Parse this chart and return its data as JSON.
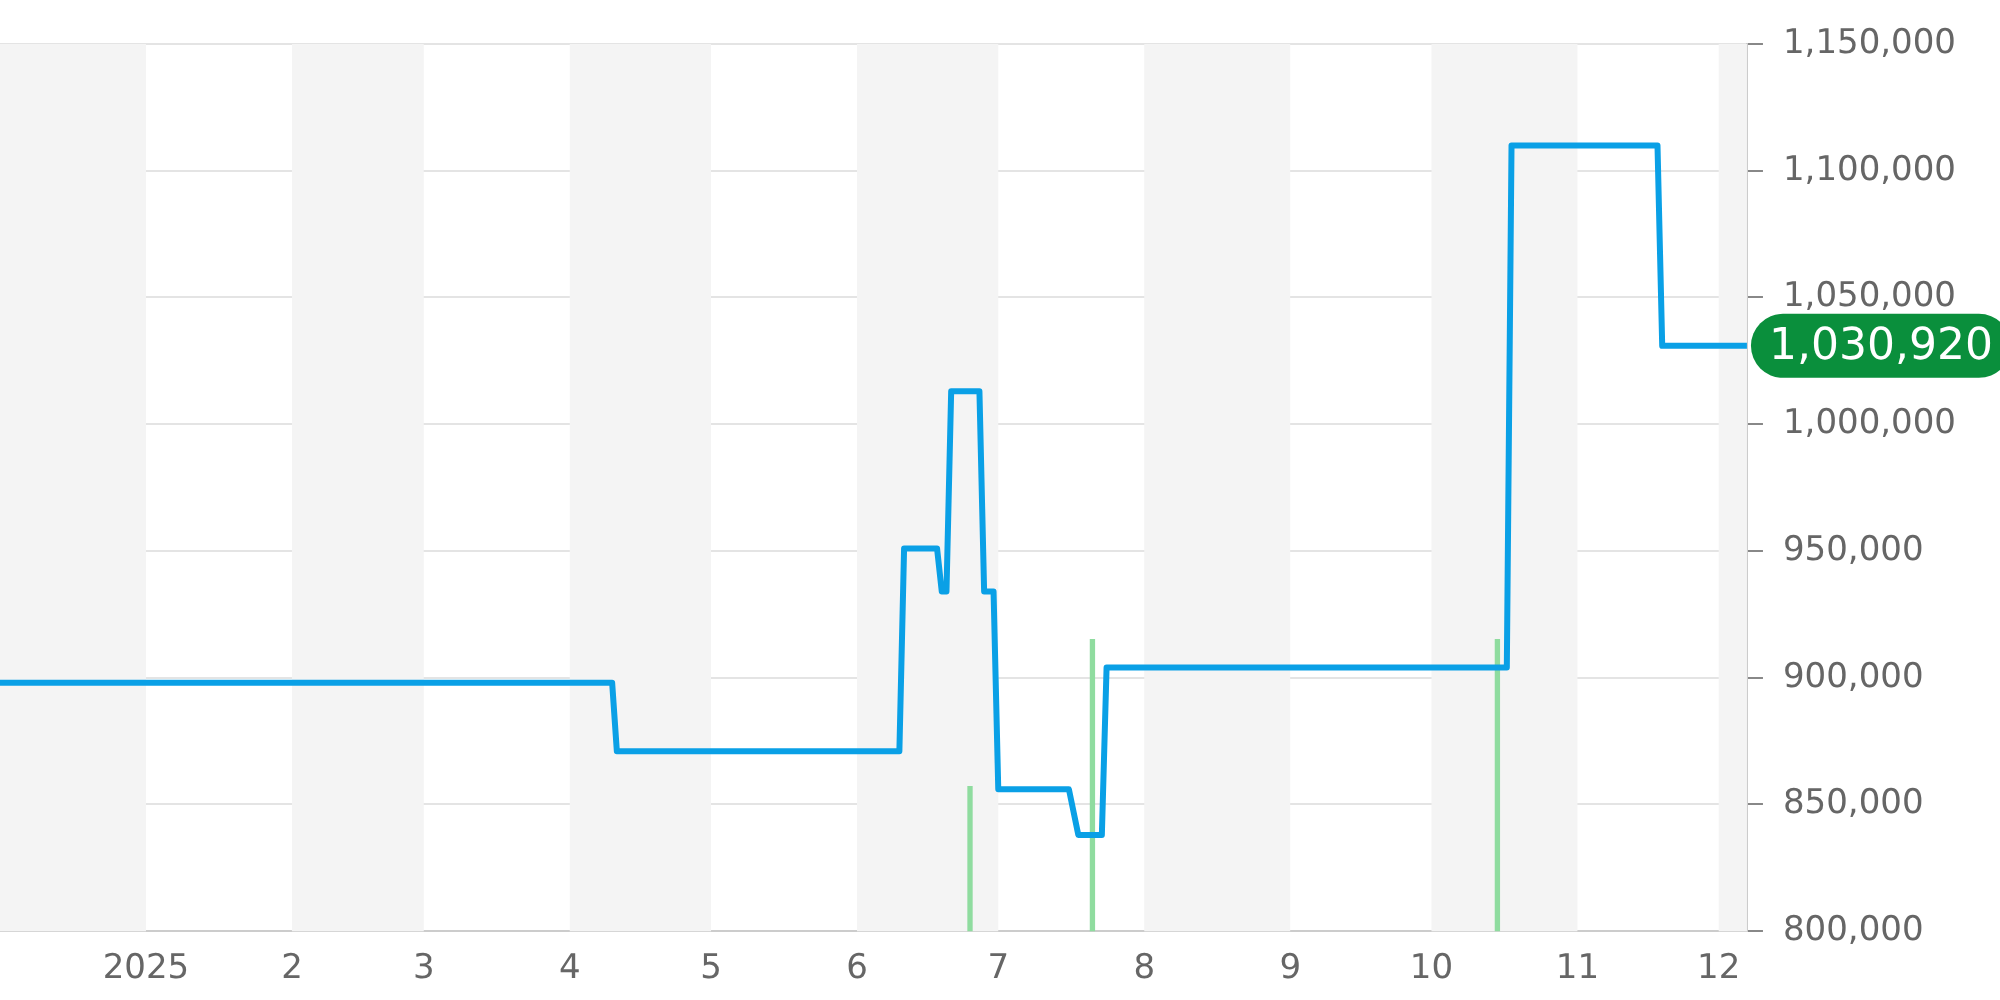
{
  "chart_data": {
    "type": "line",
    "xlim": [
      "2024-12-01",
      "2025-12-07"
    ],
    "xticks": [
      {
        "value": "2025-01-01",
        "label": "2025"
      },
      {
        "value": "2025-02-01",
        "label": "2"
      },
      {
        "value": "2025-03-01",
        "label": "3"
      },
      {
        "value": "2025-04-01",
        "label": "4"
      },
      {
        "value": "2025-05-01",
        "label": "5"
      },
      {
        "value": "2025-06-01",
        "label": "6"
      },
      {
        "value": "2025-07-01",
        "label": "7"
      },
      {
        "value": "2025-08-01",
        "label": "8"
      },
      {
        "value": "2025-09-01",
        "label": "9"
      },
      {
        "value": "2025-10-01",
        "label": "10"
      },
      {
        "value": "2025-11-01",
        "label": "11"
      },
      {
        "value": "2025-12-01",
        "label": "12"
      }
    ],
    "ylim": [
      800000,
      1150000
    ],
    "yticks": [
      {
        "value": 800000,
        "label": "800,000"
      },
      {
        "value": 850000,
        "label": "850,000"
      },
      {
        "value": 900000,
        "label": "900,000"
      },
      {
        "value": 950000,
        "label": "950,000"
      },
      {
        "value": 1000000,
        "label": "1,000,000"
      },
      {
        "value": 1050000,
        "label": "1,050,000"
      },
      {
        "value": 1100000,
        "label": "1,100,000"
      },
      {
        "value": 1150000,
        "label": "1,150,000"
      }
    ],
    "grid": "y",
    "bands": [
      {
        "axis": "x",
        "from": "2024-12-01",
        "to": "2025-01-01",
        "color": "#f4f4f4"
      },
      {
        "axis": "x",
        "from": "2025-02-01",
        "to": "2025-03-01",
        "color": "#f4f4f4"
      },
      {
        "axis": "x",
        "from": "2025-04-01",
        "to": "2025-05-01",
        "color": "#f4f4f4"
      },
      {
        "axis": "x",
        "from": "2025-06-01",
        "to": "2025-07-01",
        "color": "#f4f4f4"
      },
      {
        "axis": "x",
        "from": "2025-08-01",
        "to": "2025-09-01",
        "color": "#f4f4f4"
      },
      {
        "axis": "x",
        "from": "2025-10-01",
        "to": "2025-11-01",
        "color": "#f4f4f4"
      },
      {
        "axis": "x",
        "from": "2025-12-01",
        "to": "2025-12-07",
        "color": "#f4f4f4"
      }
    ],
    "series": [
      {
        "type": "bar",
        "color": "#8fdc9f",
        "x": [
          "2025-06-25",
          "2025-07-21",
          "2025-10-15"
        ],
        "values": [
          857000,
          915000,
          915000
        ]
      },
      {
        "color": "#0aa0e6",
        "x": [
          "2024-12-01",
          "2025-04-10",
          "2025-04-11",
          "2025-06-10",
          "2025-06-11",
          "2025-06-18",
          "2025-06-19",
          "2025-06-20",
          "2025-06-21",
          "2025-06-27",
          "2025-06-28",
          "2025-06-30",
          "2025-07-01",
          "2025-07-16",
          "2025-07-18",
          "2025-07-23",
          "2025-07-24",
          "2025-10-17",
          "2025-10-18",
          "2025-11-18",
          "2025-11-19",
          "2025-12-07"
        ],
        "values": [
          898000,
          898000,
          871000,
          871000,
          951000,
          951000,
          934000,
          934000,
          1013000,
          1013000,
          934000,
          934000,
          856000,
          856000,
          838000,
          838000,
          904000,
          904000,
          1110000,
          1110000,
          1030920,
          1030920
        ],
        "value_labels": [
          null,
          null,
          null,
          null,
          null,
          null,
          null,
          null,
          null,
          null,
          null,
          null,
          null,
          null,
          null,
          null,
          null,
          null,
          null,
          null,
          null,
          "1,030,920"
        ]
      }
    ]
  }
}
